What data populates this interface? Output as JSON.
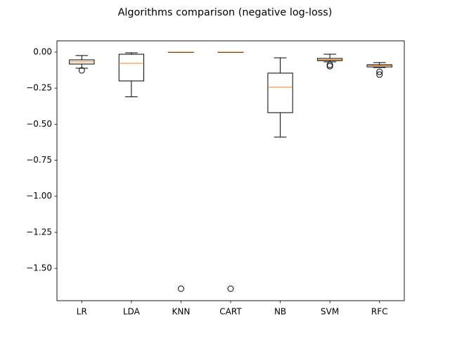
{
  "chart_data": {
    "type": "box",
    "title": "Algorithms comparison (negative log-loss)",
    "categories": [
      "LR",
      "LDA",
      "KNN",
      "CART",
      "NB",
      "SVM",
      "RFC"
    ],
    "boxes": [
      {
        "whislo": -0.112,
        "q1": -0.083,
        "med": -0.068,
        "q3": -0.054,
        "whishi": -0.024,
        "fliers": [
          -0.127
        ]
      },
      {
        "whislo": -0.31,
        "q1": -0.2,
        "med": -0.078,
        "q3": -0.015,
        "whishi": -0.005,
        "fliers": []
      },
      {
        "whislo": -0.001,
        "q1": -0.0005,
        "med": 0,
        "q3": 0,
        "whishi": 0,
        "fliers": [
          -1.641
        ]
      },
      {
        "whislo": -0.001,
        "q1": -0.0005,
        "med": 0,
        "q3": 0,
        "whishi": 0,
        "fliers": [
          -1.641
        ]
      },
      {
        "whislo": -0.59,
        "q1": -0.42,
        "med": -0.244,
        "q3": -0.146,
        "whishi": -0.04,
        "fliers": []
      },
      {
        "whislo": -0.068,
        "q1": -0.059,
        "med": -0.054,
        "q3": -0.044,
        "whishi": -0.015,
        "fliers": [
          -0.088,
          -0.098
        ]
      },
      {
        "whislo": -0.107,
        "q1": -0.103,
        "med": -0.093,
        "q3": -0.088,
        "whishi": -0.073,
        "fliers": [
          -0.137,
          -0.156
        ]
      }
    ],
    "box_color": "#000000",
    "median_color": "#ff7f0e",
    "ylim": [
      -1.724,
      0.078
    ],
    "yticks": [
      {
        "value": 0,
        "label": "0.00"
      },
      {
        "value": -0.25,
        "label": "−0.25"
      },
      {
        "value": -0.5,
        "label": "−0.50"
      },
      {
        "value": -0.75,
        "label": "−0.75"
      },
      {
        "value": -1,
        "label": "−1.00"
      },
      {
        "value": -1.25,
        "label": "−1.25"
      },
      {
        "value": -1.5,
        "label": "−1.50"
      }
    ],
    "grid": false
  }
}
